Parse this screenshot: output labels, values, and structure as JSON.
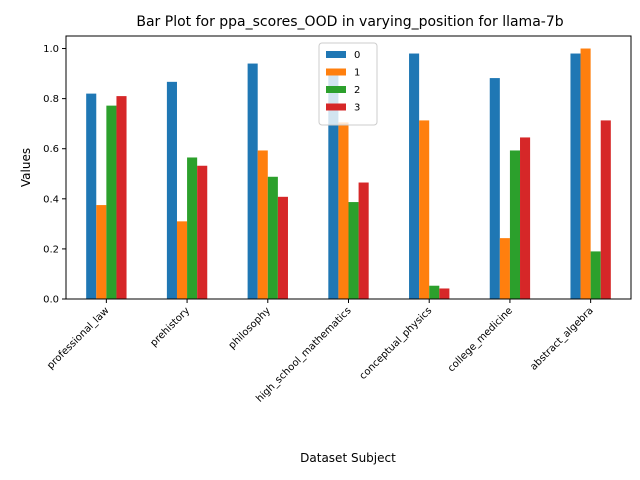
{
  "chart_data": {
    "type": "bar",
    "title": "Bar Plot for ppa_scores_OOD in varying_position for llama-7b",
    "xlabel": "Dataset Subject",
    "ylabel": "Values",
    "categories": [
      "professional_law",
      "prehistory",
      "philosophy",
      "high_school_mathematics",
      "conceptual_physics",
      "college_medicine",
      "abstract_algebra"
    ],
    "ylim": [
      0,
      1.05
    ],
    "yticks": [
      "0.0",
      "0.2",
      "0.4",
      "0.6",
      "0.8",
      "1.0"
    ],
    "legend_position": "top-center",
    "grid": false,
    "series": [
      {
        "name": "0",
        "color": "#1f77b4",
        "values": [
          0.82,
          0.867,
          0.94,
          0.915,
          0.98,
          0.882,
          0.98
        ]
      },
      {
        "name": "1",
        "color": "#ff7f0e",
        "values": [
          0.375,
          0.31,
          0.593,
          0.705,
          0.713,
          0.243,
          1.0
        ]
      },
      {
        "name": "2",
        "color": "#2ca02c",
        "values": [
          0.772,
          0.565,
          0.488,
          0.387,
          0.053,
          0.593,
          0.19
        ]
      },
      {
        "name": "3",
        "color": "#d62728",
        "values": [
          0.81,
          0.532,
          0.408,
          0.465,
          0.042,
          0.645,
          0.713
        ]
      }
    ]
  }
}
